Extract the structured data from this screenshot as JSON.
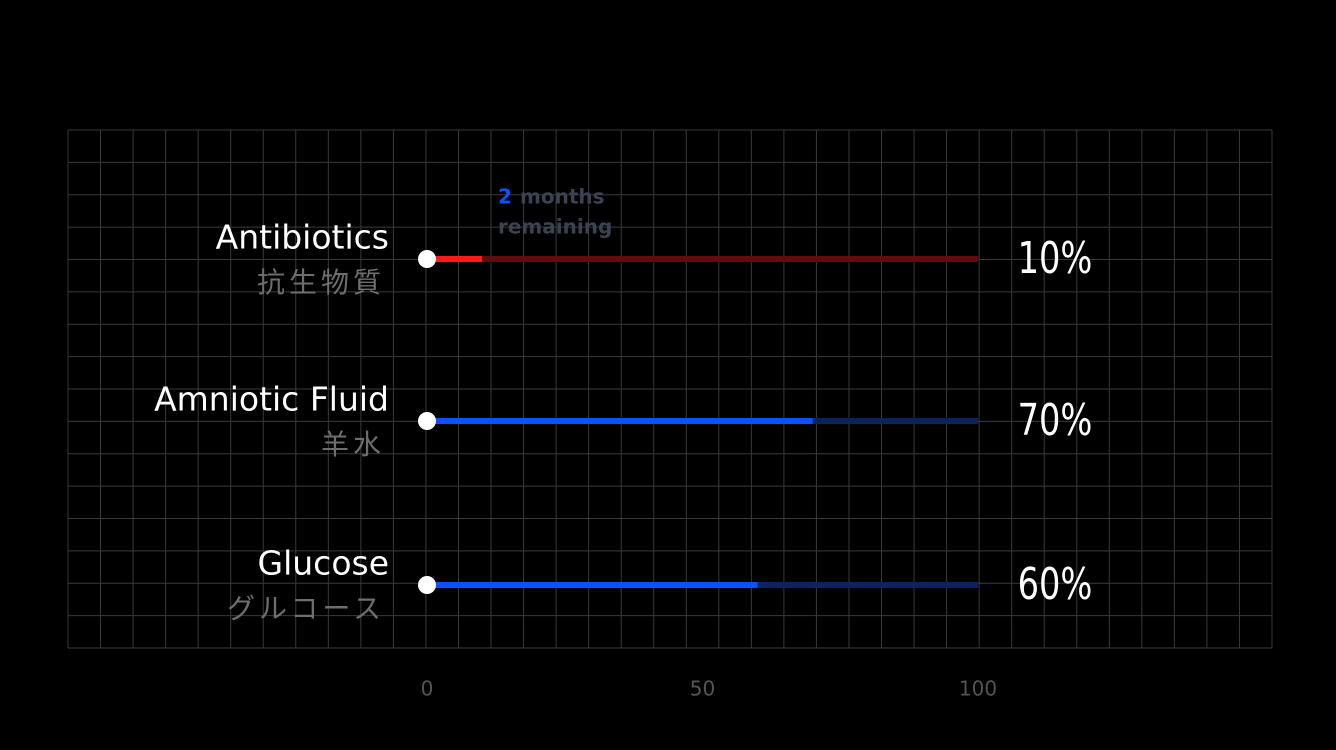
{
  "chart_data": {
    "type": "bar",
    "orientation": "horizontal",
    "categories": [
      "Antibiotics",
      "Amniotic Fluid",
      "Glucose"
    ],
    "subtitles": [
      "抗生物質",
      "羊水",
      "グルコース"
    ],
    "values": [
      10,
      70,
      60
    ],
    "value_labels": [
      "10%",
      "70%",
      "60%"
    ],
    "colors": [
      "#ff1a1a",
      "#0a52ff",
      "#0a52ff"
    ],
    "track_colors": [
      "#5e0c0c",
      "#0b245e",
      "#0b245e"
    ],
    "xlim": [
      0,
      100
    ],
    "xticks": [
      0,
      50,
      100
    ],
    "annotation": {
      "value": 2,
      "text": [
        "months",
        "remaining"
      ]
    }
  }
}
